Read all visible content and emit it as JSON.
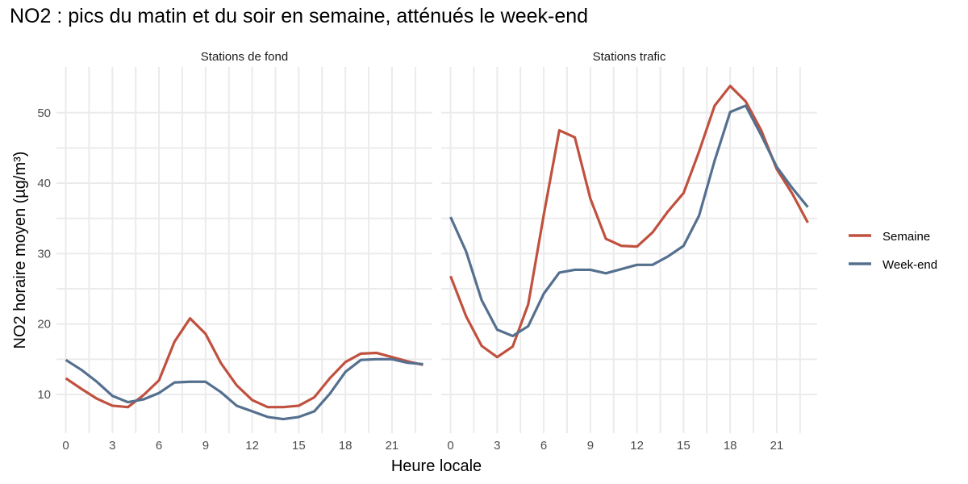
{
  "chart_data": {
    "type": "line",
    "title": "NO2 : pics du matin et du soir en semaine, atténués le week-end",
    "xlabel": "Heure locale",
    "ylabel": "NO2 horaire moyen (µg/m³)",
    "x": [
      0,
      1,
      2,
      3,
      4,
      5,
      6,
      7,
      8,
      9,
      10,
      11,
      12,
      13,
      14,
      15,
      16,
      17,
      18,
      19,
      20,
      21,
      22,
      23
    ],
    "x_ticks": [
      "0",
      "3",
      "6",
      "9",
      "12",
      "15",
      "18",
      "21"
    ],
    "y_ticks": [
      "10",
      "20",
      "30",
      "40",
      "50"
    ],
    "xlim": [
      -0.6,
      23.6
    ],
    "ylim": [
      4.5,
      56.5
    ],
    "grid": true,
    "legend_position": "right",
    "series_colors": {
      "Semaine": "#C0513F",
      "Week-end": "#55708F"
    },
    "panels": [
      {
        "strip": "Stations de fond",
        "series": [
          {
            "name": "Semaine",
            "values": [
              12.3,
              10.8,
              9.4,
              8.4,
              8.2,
              9.9,
              12.0,
              17.5,
              20.8,
              18.6,
              14.4,
              11.3,
              9.2,
              8.2,
              8.2,
              8.4,
              9.6,
              12.3,
              14.6,
              15.8,
              15.9,
              15.3,
              14.7,
              14.2
            ]
          },
          {
            "name": "Week-end",
            "values": [
              14.9,
              13.5,
              11.8,
              9.8,
              8.9,
              9.3,
              10.2,
              11.7,
              11.8,
              11.8,
              10.3,
              8.4,
              7.6,
              6.8,
              6.5,
              6.8,
              7.6,
              10.1,
              13.2,
              14.9,
              15.0,
              15.0,
              14.5,
              14.3
            ]
          }
        ]
      },
      {
        "strip": "Stations trafic",
        "series": [
          {
            "name": "Semaine",
            "values": [
              26.8,
              21.1,
              16.9,
              15.3,
              16.8,
              22.8,
              35.5,
              47.5,
              46.5,
              37.8,
              32.1,
              31.1,
              31.0,
              33.0,
              36.0,
              38.6,
              44.5,
              51.0,
              53.8,
              51.6,
              47.5,
              42.0,
              38.5,
              34.4
            ]
          },
          {
            "name": "Week-end",
            "values": [
              35.2,
              30.3,
              23.4,
              19.2,
              18.3,
              19.7,
              24.3,
              27.3,
              27.7,
              27.7,
              27.2,
              27.8,
              28.4,
              28.4,
              29.6,
              31.1,
              35.4,
              43.2,
              50.1,
              51.0,
              46.8,
              42.3,
              39.3,
              36.6
            ]
          }
        ]
      }
    ]
  }
}
